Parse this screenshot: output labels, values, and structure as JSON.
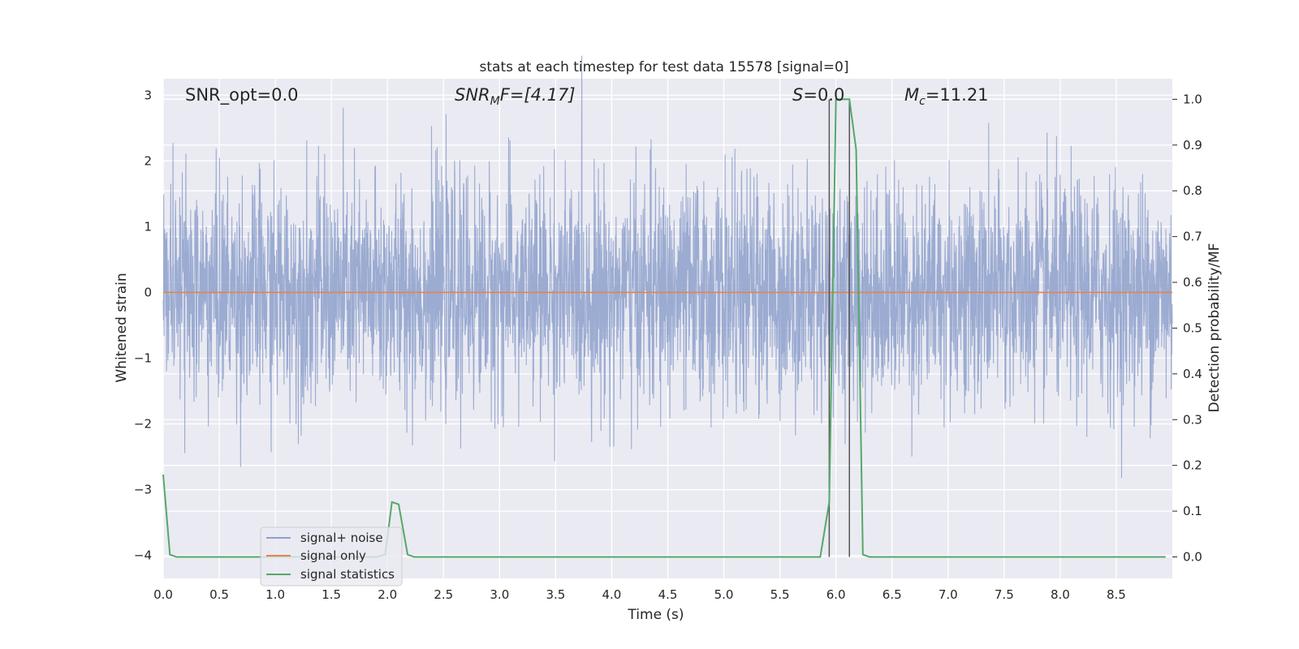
{
  "chart_data": {
    "type": "line",
    "title": "stats at each timestep for test data 15578 [signal=0]",
    "xlabel": "Time (s)",
    "ylabel": "Whitened strain",
    "y2label": "Detection probability/MF",
    "xlim": [
      0.0,
      9.0
    ],
    "ylim": [
      -4.35,
      3.25
    ],
    "y2lim": [
      -0.047,
      1.045
    ],
    "x_ticks": [
      "0.0",
      "0.5",
      "1.0",
      "1.5",
      "2.0",
      "2.5",
      "3.0",
      "3.5",
      "4.0",
      "4.5",
      "5.0",
      "5.5",
      "6.0",
      "6.5",
      "7.0",
      "7.5",
      "8.0",
      "8.5"
    ],
    "y_ticks": [
      "3",
      "2",
      "1",
      "0",
      "−1",
      "−2",
      "−3",
      "−4"
    ],
    "y2_ticks": [
      "1.0",
      "0.9",
      "0.8",
      "0.7",
      "0.6",
      "0.5",
      "0.4",
      "0.3",
      "0.2",
      "0.1",
      "0.0"
    ],
    "grid": true,
    "legend_position": "lower-left",
    "annotations": {
      "snr_opt": "SNR_opt=0.0",
      "snr_mf_main": "SNR",
      "snr_mf_sub": "M",
      "snr_mf_rest": "F=[4.17]",
      "s_main": "S",
      "s_rest": "=0.0",
      "mc_main": "M",
      "mc_sub": "c",
      "mc_rest": "=11.21"
    },
    "series": [
      {
        "name": "signal+ noise",
        "axis": "left",
        "color": "#8da0cb",
        "description_of_values": "white Gaussian noise, roughly ±1.7 with spikes up to ±3.6",
        "amplitude": 1.7,
        "spike_max": 3.6
      },
      {
        "name": "signal only",
        "axis": "left",
        "color": "#dd8452",
        "x": [
          0.0,
          9.0
        ],
        "y": [
          0.0,
          0.0
        ]
      },
      {
        "name": "signal statistics",
        "axis": "right",
        "color": "#55a868",
        "x": [
          0.0,
          0.06,
          0.12,
          1.9,
          1.98,
          2.04,
          2.1,
          2.18,
          2.24,
          5.86,
          5.94,
          6.0,
          6.12,
          6.18,
          6.24,
          6.3,
          8.94
        ],
        "y": [
          0.18,
          0.005,
          0.0,
          0.0,
          0.005,
          0.12,
          0.115,
          0.005,
          0.0,
          0.0,
          0.12,
          1.0,
          1.0,
          0.89,
          0.005,
          0.0,
          0.0
        ]
      }
    ],
    "vertical_markers": {
      "color": "#555555",
      "x": [
        5.94,
        6.12
      ],
      "y2_range": [
        0.0,
        1.0
      ]
    }
  },
  "legend": {
    "items": [
      {
        "label": "signal+ noise",
        "color": "#8da0cb"
      },
      {
        "label": "signal only",
        "color": "#dd8452"
      },
      {
        "label": "signal statistics",
        "color": "#55a868"
      }
    ]
  },
  "colors": {
    "plot_background": "#eaeaf2",
    "grid": "#ffffff"
  }
}
